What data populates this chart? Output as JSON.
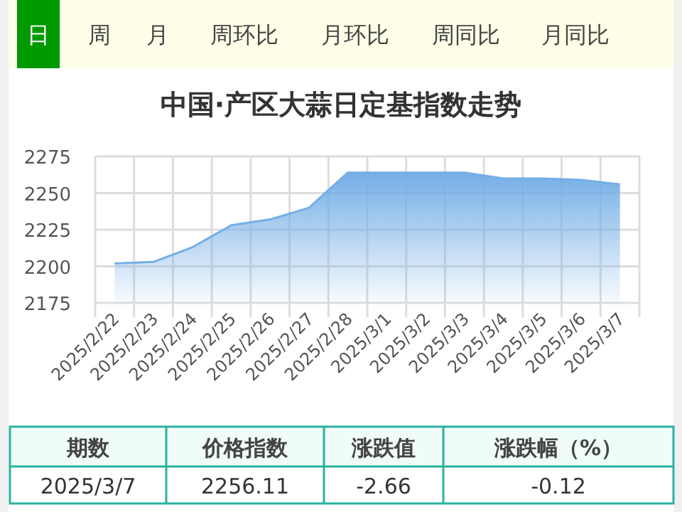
{
  "chart_data": {
    "type": "area",
    "title": "中国·产区大蒜日定基指数走势",
    "categories": [
      "2025/2/22",
      "2025/2/23",
      "2025/2/24",
      "2025/2/25",
      "2025/2/26",
      "2025/2/27",
      "2025/2/28",
      "2025/3/1",
      "2025/3/2",
      "2025/3/3",
      "2025/3/4",
      "2025/3/5",
      "2025/3/6",
      "2025/3/7"
    ],
    "series": [
      {
        "color": "#74aee6",
        "values": [
          2202,
          2203,
          2213,
          2228,
          2232,
          2240,
          2264,
          2264,
          2264,
          2264,
          2260,
          2260,
          2259,
          2256
        ]
      }
    ],
    "ylim": [
      2175,
      2275
    ],
    "yticks": [
      2175,
      2200,
      2225,
      2250,
      2275
    ],
    "grid": true,
    "marker": "none",
    "annotations": [
      "日",
      "周",
      "月",
      "周环比",
      "月环比",
      "周同比",
      "月同比",
      "期数",
      "价格指数",
      "涨跌值",
      "涨跌幅（%）",
      "2025/3/7",
      "2256.11",
      "-2.66",
      "-0.12"
    ]
  }
}
